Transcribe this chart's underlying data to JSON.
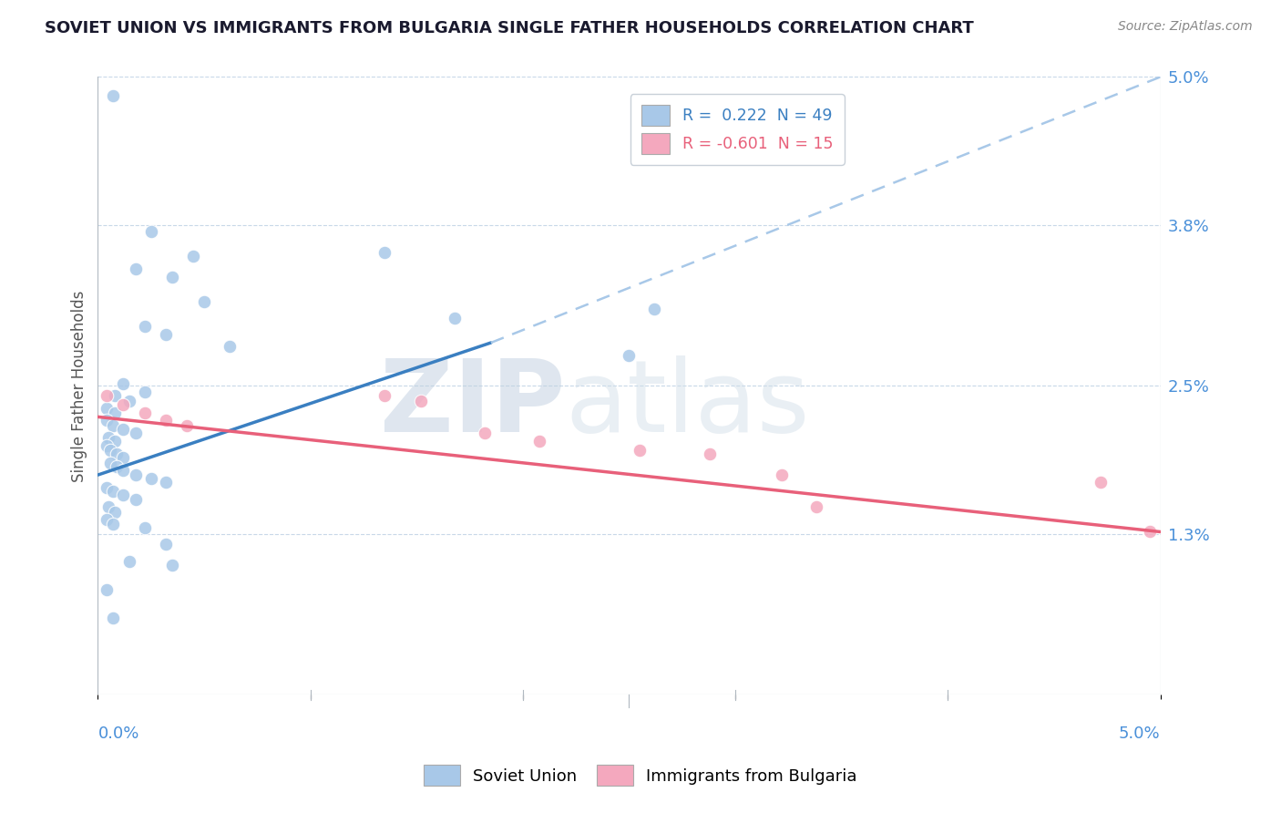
{
  "title": "SOVIET UNION VS IMMIGRANTS FROM BULGARIA SINGLE FATHER HOUSEHOLDS CORRELATION CHART",
  "source": "Source: ZipAtlas.com",
  "ylabel": "Single Father Households",
  "xmin": 0.0,
  "xmax": 5.0,
  "ymin": 0.0,
  "ymax": 5.0,
  "yticks": [
    1.3,
    2.5,
    3.8,
    5.0
  ],
  "ytick_labels": [
    "1.3%",
    "2.5%",
    "3.8%",
    "5.0%"
  ],
  "xtick_labels": [
    "0.0%",
    "",
    "",
    "",
    "",
    "5.0%"
  ],
  "watermark_zip": "ZIP",
  "watermark_atlas": "atlas",
  "legend_r1": "R =  0.222  N = 49",
  "legend_r2": "R = -0.601  N = 15",
  "soviet_color": "#a8c8e8",
  "bulgaria_color": "#f4a8be",
  "soviet_line_color": "#3a7fc1",
  "bulgaria_line_color": "#e8607a",
  "dashed_line_color": "#a8c8e8",
  "soviet_union_points": [
    [
      0.07,
      4.85
    ],
    [
      0.25,
      3.75
    ],
    [
      0.45,
      3.55
    ],
    [
      0.18,
      3.45
    ],
    [
      0.35,
      3.38
    ],
    [
      0.5,
      3.18
    ],
    [
      0.22,
      2.98
    ],
    [
      0.32,
      2.92
    ],
    [
      0.62,
      2.82
    ],
    [
      1.35,
      3.58
    ],
    [
      1.68,
      3.05
    ],
    [
      2.62,
      3.12
    ],
    [
      2.5,
      2.75
    ],
    [
      0.12,
      2.52
    ],
    [
      0.22,
      2.45
    ],
    [
      0.08,
      2.42
    ],
    [
      0.15,
      2.38
    ],
    [
      0.04,
      2.32
    ],
    [
      0.08,
      2.28
    ],
    [
      0.04,
      2.22
    ],
    [
      0.07,
      2.18
    ],
    [
      0.12,
      2.15
    ],
    [
      0.18,
      2.12
    ],
    [
      0.05,
      2.08
    ],
    [
      0.08,
      2.05
    ],
    [
      0.04,
      2.02
    ],
    [
      0.06,
      1.98
    ],
    [
      0.09,
      1.95
    ],
    [
      0.12,
      1.92
    ],
    [
      0.06,
      1.88
    ],
    [
      0.09,
      1.85
    ],
    [
      0.12,
      1.82
    ],
    [
      0.18,
      1.78
    ],
    [
      0.25,
      1.75
    ],
    [
      0.32,
      1.72
    ],
    [
      0.04,
      1.68
    ],
    [
      0.07,
      1.65
    ],
    [
      0.12,
      1.62
    ],
    [
      0.18,
      1.58
    ],
    [
      0.05,
      1.52
    ],
    [
      0.08,
      1.48
    ],
    [
      0.04,
      1.42
    ],
    [
      0.07,
      1.38
    ],
    [
      0.22,
      1.35
    ],
    [
      0.32,
      1.22
    ],
    [
      0.15,
      1.08
    ],
    [
      0.35,
      1.05
    ],
    [
      0.04,
      0.85
    ],
    [
      0.07,
      0.62
    ]
  ],
  "bulgaria_points": [
    [
      0.04,
      2.42
    ],
    [
      0.12,
      2.35
    ],
    [
      0.22,
      2.28
    ],
    [
      0.32,
      2.22
    ],
    [
      0.42,
      2.18
    ],
    [
      1.35,
      2.42
    ],
    [
      1.52,
      2.38
    ],
    [
      1.82,
      2.12
    ],
    [
      2.08,
      2.05
    ],
    [
      2.55,
      1.98
    ],
    [
      2.88,
      1.95
    ],
    [
      3.22,
      1.78
    ],
    [
      4.72,
      1.72
    ],
    [
      3.38,
      1.52
    ],
    [
      4.95,
      1.32
    ]
  ],
  "legend_labels": [
    "Soviet Union",
    "Immigrants from Bulgaria"
  ],
  "background_color": "#ffffff",
  "grid_color": "#c8d8e8",
  "axis_label_color": "#4a90d9",
  "right_label_color": "#4a90d9",
  "soviet_line_x_start": 0.0,
  "soviet_line_x_solid_end": 1.85,
  "soviet_line_x_end": 5.0,
  "soviet_line_y_start": 1.78,
  "soviet_line_y_solid_end": 2.85,
  "soviet_line_y_end": 5.0,
  "bulgaria_line_x_start": 0.0,
  "bulgaria_line_x_end": 5.0,
  "bulgaria_line_y_start": 2.25,
  "bulgaria_line_y_end": 1.32
}
